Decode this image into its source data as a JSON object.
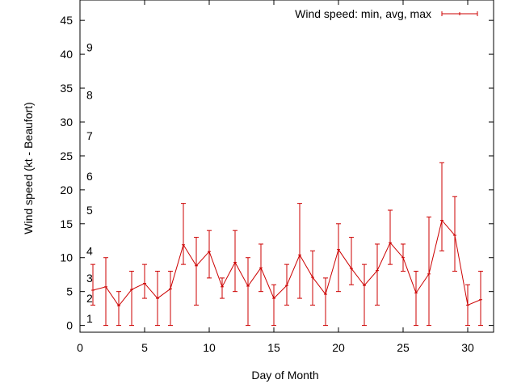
{
  "chart_data": {
    "type": "line",
    "title": "",
    "xlabel": "Day of Month",
    "ylabel": "Wind speed (kt - Beaufort)",
    "xlim": [
      0,
      32
    ],
    "ylim": [
      -1,
      48
    ],
    "x_ticks": [
      0,
      5,
      10,
      15,
      20,
      25,
      30
    ],
    "y_ticks": [
      0,
      5,
      10,
      15,
      20,
      25,
      30,
      35,
      40,
      45
    ],
    "grid": false,
    "legend_position": "top-right",
    "series": [
      {
        "name": "Wind speed: min, avg, max",
        "color": "#cc0000",
        "x": [
          1,
          2,
          3,
          4,
          5,
          6,
          7,
          8,
          9,
          10,
          11,
          12,
          13,
          14,
          15,
          16,
          17,
          18,
          19,
          20,
          21,
          22,
          23,
          24,
          25,
          26,
          27,
          28,
          29,
          30,
          31
        ],
        "avg": [
          5.2,
          5.7,
          2.9,
          5.3,
          6.2,
          4.0,
          5.4,
          11.9,
          8.8,
          10.9,
          5.7,
          9.3,
          5.8,
          8.5,
          4.0,
          5.9,
          10.4,
          7.1,
          4.6,
          11.2,
          8.4,
          5.9,
          8.1,
          12.2,
          10.0,
          4.8,
          7.6,
          15.5,
          13.3,
          3.0,
          3.8
        ],
        "min": [
          3,
          0,
          0,
          0,
          4,
          0,
          0,
          9,
          3,
          7,
          4,
          5,
          0,
          5,
          0,
          3,
          4,
          3,
          0,
          5,
          6,
          0,
          3,
          9,
          8,
          0,
          0,
          11,
          8,
          0,
          0
        ],
        "max": [
          9,
          10,
          5,
          8,
          9,
          8,
          8,
          18,
          13,
          14,
          7,
          14,
          10,
          12,
          6,
          9,
          18,
          11,
          7,
          15,
          13,
          9,
          12,
          17,
          12,
          8,
          16,
          24,
          19,
          6,
          8
        ]
      }
    ],
    "annotations": [
      {
        "text": "1",
        "y": 1
      },
      {
        "text": "2",
        "y": 4
      },
      {
        "text": "3",
        "y": 7
      },
      {
        "text": "4",
        "y": 11
      },
      {
        "text": "5",
        "y": 17
      },
      {
        "text": "6",
        "y": 22
      },
      {
        "text": "7",
        "y": 28
      },
      {
        "text": "8",
        "y": 34
      },
      {
        "text": "9",
        "y": 41
      }
    ]
  }
}
